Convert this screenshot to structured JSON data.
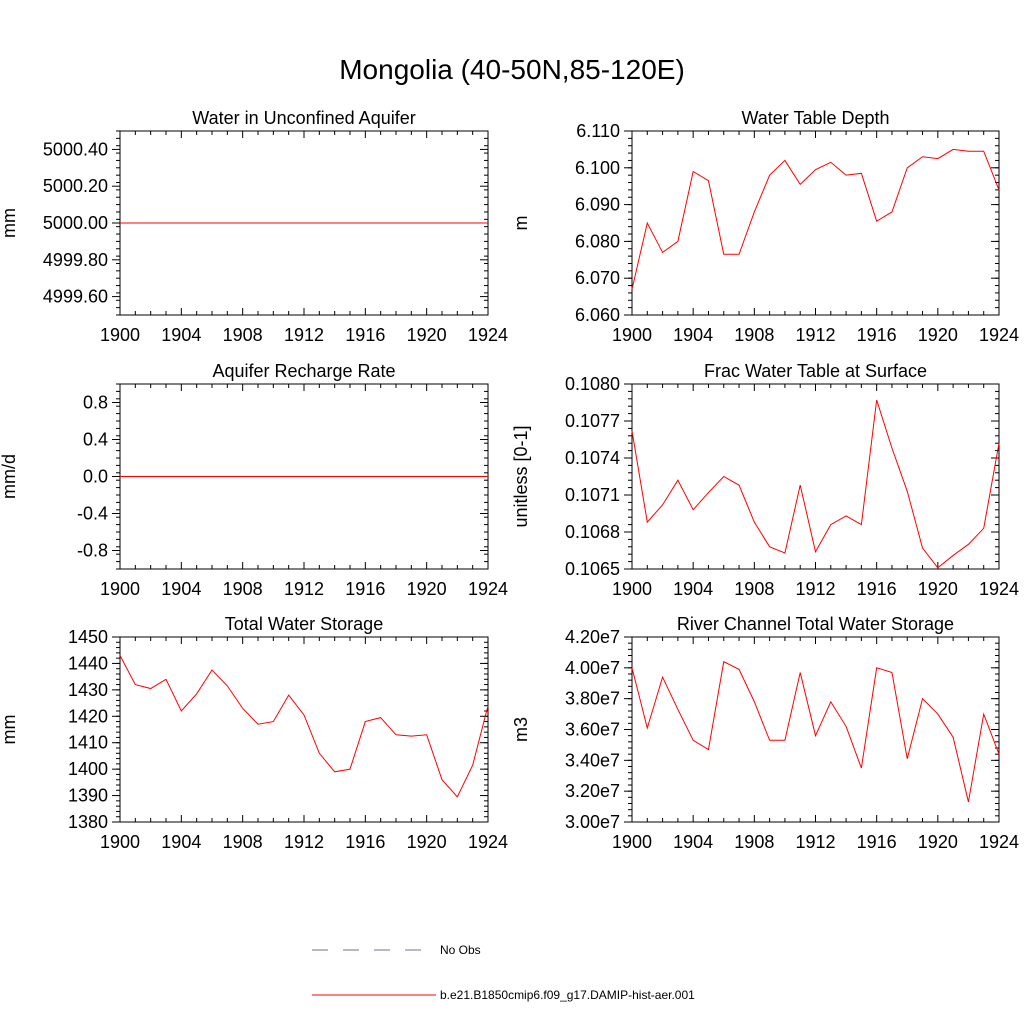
{
  "title": "Mongolia (40-50N,85-120E)",
  "colors": {
    "model": "#ff0000",
    "obs": "#6a6fb5",
    "axis": "#000000"
  },
  "legend": {
    "items": [
      {
        "label": "No Obs",
        "style": "dashed",
        "color": "#6a6fb5"
      },
      {
        "label": "b.e21.B1850cmip6.f09_g17.DAMIP-hist-aer.001",
        "style": "solid",
        "color": "#ff0000"
      }
    ]
  },
  "chart_data": [
    {
      "type": "line",
      "title": "Water in Unconfined Aquifer",
      "ylabel": "mm",
      "ylim": [
        4999.5,
        5000.5
      ],
      "yticks": [
        4999.6,
        4999.8,
        5000.0,
        5000.2,
        5000.4
      ],
      "ytick_labels": [
        "4999.60",
        "4999.80",
        "5000.00",
        "5000.20",
        "5000.40"
      ],
      "xlim": [
        1900,
        1924
      ],
      "xticks": [
        1900,
        1904,
        1908,
        1912,
        1916,
        1920,
        1924
      ],
      "xtick_labels": [
        "1900",
        "1904",
        "1908",
        "1912",
        "1916",
        "1920",
        "1924"
      ],
      "x": [
        1900,
        1901,
        1902,
        1903,
        1904,
        1905,
        1906,
        1907,
        1908,
        1909,
        1910,
        1911,
        1912,
        1913,
        1914,
        1915,
        1916,
        1917,
        1918,
        1919,
        1920,
        1921,
        1922,
        1923,
        1924
      ],
      "series": [
        {
          "values": [
            5000,
            5000,
            5000,
            5000,
            5000,
            5000,
            5000,
            5000,
            5000,
            5000,
            5000,
            5000,
            5000,
            5000,
            5000,
            5000,
            5000,
            5000,
            5000,
            5000,
            5000,
            5000,
            5000,
            5000,
            5000
          ]
        }
      ]
    },
    {
      "type": "line",
      "title": "Water Table Depth",
      "ylabel": "m",
      "ylim": [
        6.06,
        6.11
      ],
      "yticks": [
        6.06,
        6.07,
        6.08,
        6.09,
        6.1,
        6.11
      ],
      "ytick_labels": [
        "6.060",
        "6.070",
        "6.080",
        "6.090",
        "6.100",
        "6.110"
      ],
      "xlim": [
        1900,
        1924
      ],
      "xticks": [
        1900,
        1904,
        1908,
        1912,
        1916,
        1920,
        1924
      ],
      "xtick_labels": [
        "1900",
        "1904",
        "1908",
        "1912",
        "1916",
        "1920",
        "1924"
      ],
      "x": [
        1900,
        1901,
        1902,
        1903,
        1904,
        1905,
        1906,
        1907,
        1908,
        1909,
        1910,
        1911,
        1912,
        1913,
        1914,
        1915,
        1916,
        1917,
        1918,
        1919,
        1920,
        1921,
        1922,
        1923,
        1924
      ],
      "series": [
        {
          "values": [
            6.067,
            6.085,
            6.077,
            6.08,
            6.099,
            6.0965,
            6.0765,
            6.0765,
            6.088,
            6.098,
            6.102,
            6.0955,
            6.0995,
            6.1015,
            6.098,
            6.0985,
            6.0855,
            6.088,
            6.1,
            6.103,
            6.1025,
            6.105,
            6.1045,
            6.1045,
            6.094
          ]
        }
      ]
    },
    {
      "type": "line",
      "title": "Aquifer Recharge Rate",
      "ylabel": "mm/d",
      "ylim": [
        -1.0,
        1.0
      ],
      "yticks": [
        -0.8,
        -0.4,
        0.0,
        0.4,
        0.8
      ],
      "ytick_labels": [
        "-0.8",
        "-0.4",
        "0.0",
        "0.4",
        "0.8"
      ],
      "xlim": [
        1900,
        1924
      ],
      "xticks": [
        1900,
        1904,
        1908,
        1912,
        1916,
        1920,
        1924
      ],
      "xtick_labels": [
        "1900",
        "1904",
        "1908",
        "1912",
        "1916",
        "1920",
        "1924"
      ],
      "x": [
        1900,
        1901,
        1902,
        1903,
        1904,
        1905,
        1906,
        1907,
        1908,
        1909,
        1910,
        1911,
        1912,
        1913,
        1914,
        1915,
        1916,
        1917,
        1918,
        1919,
        1920,
        1921,
        1922,
        1923,
        1924
      ],
      "series": [
        {
          "values": [
            0,
            0,
            0,
            0,
            0,
            0,
            0,
            0,
            0,
            0,
            0,
            0,
            0,
            0,
            0,
            0,
            0,
            0,
            0,
            0,
            0,
            0,
            0,
            0,
            0
          ]
        }
      ]
    },
    {
      "type": "line",
      "title": "Frac Water Table at Surface",
      "ylabel": "unitless [0-1]",
      "ylim": [
        0.1065,
        0.108
      ],
      "yticks": [
        0.1065,
        0.1068,
        0.1071,
        0.1074,
        0.1077,
        0.108
      ],
      "ytick_labels": [
        "0.1065",
        "0.1068",
        "0.1071",
        "0.1074",
        "0.1077",
        "0.1080"
      ],
      "xlim": [
        1900,
        1924
      ],
      "xticks": [
        1900,
        1904,
        1908,
        1912,
        1916,
        1920,
        1924
      ],
      "xtick_labels": [
        "1900",
        "1904",
        "1908",
        "1912",
        "1916",
        "1920",
        "1924"
      ],
      "x": [
        1900,
        1901,
        1902,
        1903,
        1904,
        1905,
        1906,
        1907,
        1908,
        1909,
        1910,
        1911,
        1912,
        1913,
        1914,
        1915,
        1916,
        1917,
        1918,
        1919,
        1920,
        1921,
        1922,
        1923,
        1924
      ],
      "series": [
        {
          "values": [
            0.10762,
            0.10688,
            0.10702,
            0.10722,
            0.10698,
            0.10712,
            0.10725,
            0.10718,
            0.10688,
            0.10668,
            0.10663,
            0.10718,
            0.10664,
            0.10686,
            0.10693,
            0.10686,
            0.10787,
            0.10748,
            0.10713,
            0.10667,
            0.10651,
            0.10661,
            0.1067,
            0.10683,
            0.10752
          ]
        }
      ]
    },
    {
      "type": "line",
      "title": "Total Water Storage",
      "ylabel": "mm",
      "ylim": [
        1380,
        1450
      ],
      "yticks": [
        1380,
        1390,
        1400,
        1410,
        1420,
        1430,
        1440,
        1450
      ],
      "ytick_labels": [
        "1380",
        "1390",
        "1400",
        "1410",
        "1420",
        "1430",
        "1440",
        "1450"
      ],
      "xlim": [
        1900,
        1924
      ],
      "xticks": [
        1900,
        1904,
        1908,
        1912,
        1916,
        1920,
        1924
      ],
      "xtick_labels": [
        "1900",
        "1904",
        "1908",
        "1912",
        "1916",
        "1920",
        "1924"
      ],
      "x": [
        1900,
        1901,
        1902,
        1903,
        1904,
        1905,
        1906,
        1907,
        1908,
        1909,
        1910,
        1911,
        1912,
        1913,
        1914,
        1915,
        1916,
        1917,
        1918,
        1919,
        1920,
        1921,
        1922,
        1923,
        1924
      ],
      "series": [
        {
          "values": [
            1443,
            1432,
            1430.5,
            1434,
            1422,
            1428.5,
            1437.5,
            1431.5,
            1423,
            1417,
            1418,
            1428,
            1420.5,
            1406,
            1399,
            1400,
            1418,
            1419.5,
            1413,
            1412.5,
            1413,
            1396,
            1389.5,
            1401.5,
            1424
          ]
        }
      ]
    },
    {
      "type": "line",
      "title": "River Channel Total Water Storage",
      "ylabel": "m3",
      "ylim": [
        30000000,
        42000000
      ],
      "yticks": [
        30000000,
        32000000,
        34000000,
        36000000,
        38000000,
        40000000,
        42000000
      ],
      "ytick_labels": [
        "3.00e7",
        "3.20e7",
        "3.40e7",
        "3.60e7",
        "3.80e7",
        "4.00e7",
        "4.20e7"
      ],
      "xlim": [
        1900,
        1924
      ],
      "xticks": [
        1900,
        1904,
        1908,
        1912,
        1916,
        1920,
        1924
      ],
      "xtick_labels": [
        "1900",
        "1904",
        "1908",
        "1912",
        "1916",
        "1920",
        "1924"
      ],
      "x": [
        1900,
        1901,
        1902,
        1903,
        1904,
        1905,
        1906,
        1907,
        1908,
        1909,
        1910,
        1911,
        1912,
        1913,
        1914,
        1915,
        1916,
        1917,
        1918,
        1919,
        1920,
        1921,
        1922,
        1923,
        1924
      ],
      "series": [
        {
          "values": [
            40000000,
            36100000,
            39400000,
            37300000,
            35300000,
            34700000,
            40400000,
            39900000,
            37800000,
            35300000,
            35300000,
            39700000,
            35600000,
            37800000,
            36200000,
            33500000,
            40000000,
            39700000,
            34100000,
            38000000,
            37000000,
            35500000,
            31300000,
            37000000,
            34400000
          ]
        }
      ]
    }
  ]
}
